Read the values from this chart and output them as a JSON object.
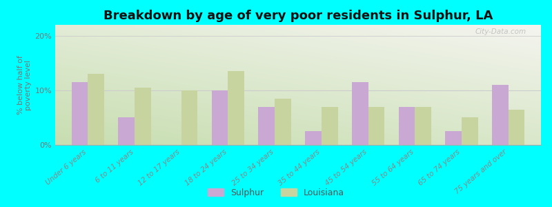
{
  "title": "Breakdown by age of very poor residents in Sulphur, LA",
  "categories": [
    "Under 6 years",
    "6 to 11 years",
    "12 to 17 years",
    "18 to 24 years",
    "25 to 34 years",
    "35 to 44 years",
    "45 to 54 years",
    "55 to 64 years",
    "65 to 74 years",
    "75 years and over"
  ],
  "sulphur_values": [
    11.5,
    5.0,
    0.0,
    10.0,
    7.0,
    2.5,
    11.5,
    7.0,
    2.5,
    11.0
  ],
  "louisiana_values": [
    13.0,
    10.5,
    10.0,
    13.5,
    8.5,
    7.0,
    7.0,
    7.0,
    5.0,
    6.5
  ],
  "sulphur_color": "#c9a8d4",
  "louisiana_color": "#c8d4a0",
  "ylabel": "% below half of\npoverty level",
  "ylim": [
    0,
    22
  ],
  "yticks": [
    0,
    10,
    20
  ],
  "ytick_labels": [
    "0%",
    "10%",
    "20%"
  ],
  "background_color": "#00ffff",
  "title_fontsize": 13,
  "axis_label_fontsize": 8,
  "tick_fontsize": 8,
  "bar_width": 0.35,
  "legend_labels": [
    "Sulphur",
    "Louisiana"
  ],
  "watermark": "City-Data.com"
}
